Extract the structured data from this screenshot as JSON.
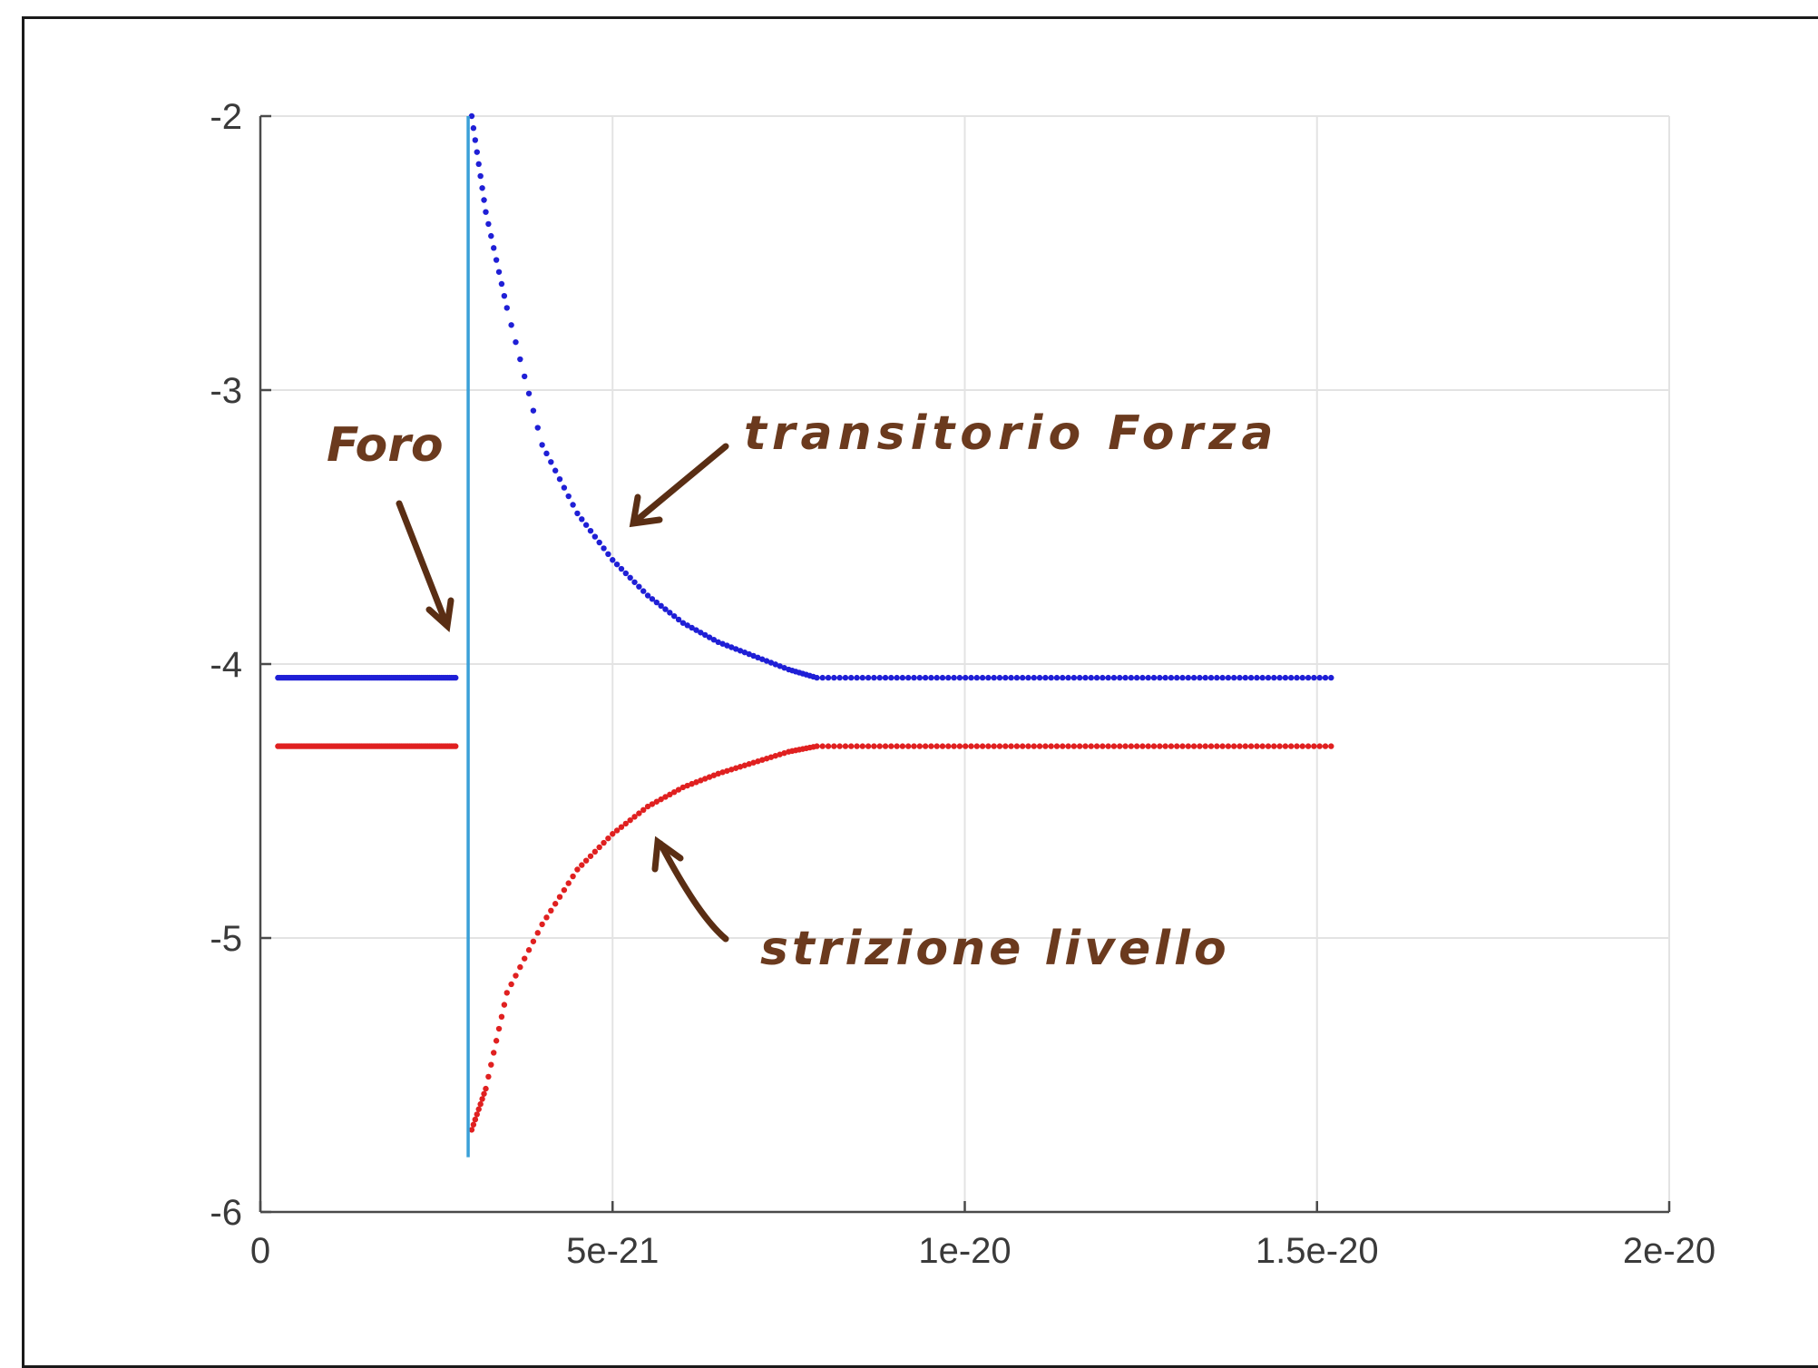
{
  "chart_data": {
    "type": "scatter",
    "xlim": [
      0,
      2e-20
    ],
    "ylim": [
      -6,
      -2
    ],
    "x_ticks": [
      0,
      5e-21,
      1e-20,
      1.5e-20,
      2e-20
    ],
    "x_tick_labels": [
      "0",
      "5e-21",
      "1e-20",
      "1.5e-20",
      "2e-20"
    ],
    "y_ticks": [
      -2,
      -3,
      -4,
      -5,
      -6
    ],
    "y_tick_labels": [
      "-2",
      "-3",
      "-4",
      "-5",
      "-6"
    ],
    "grid": true,
    "series": [
      {
        "color": "#1f1fd6",
        "points": [
          [
            2.5e-22,
            -4.05
          ],
          [
            2.8e-21,
            -4.05
          ],
          [
            3e-21,
            -2.0
          ],
          [
            3.2e-21,
            -2.35
          ],
          [
            3.5e-21,
            -2.7
          ],
          [
            4e-21,
            -3.2
          ],
          [
            4.5e-21,
            -3.45
          ],
          [
            5e-21,
            -3.62
          ],
          [
            5.5e-21,
            -3.75
          ],
          [
            6e-21,
            -3.85
          ],
          [
            6.5e-21,
            -3.92
          ],
          [
            7e-21,
            -3.97
          ],
          [
            7.5e-21,
            -4.02
          ],
          [
            7.9e-21,
            -4.05
          ],
          [
            1.52e-20,
            -4.05
          ]
        ]
      },
      {
        "color": "#e02020",
        "points": [
          [
            2.5e-22,
            -4.3
          ],
          [
            2.8e-21,
            -4.3
          ],
          [
            3e-21,
            -5.7
          ],
          [
            3.2e-21,
            -5.55
          ],
          [
            3.5e-21,
            -5.2
          ],
          [
            4e-21,
            -4.95
          ],
          [
            4.5e-21,
            -4.75
          ],
          [
            5e-21,
            -4.62
          ],
          [
            5.5e-21,
            -4.52
          ],
          [
            6e-21,
            -4.45
          ],
          [
            6.5e-21,
            -4.4
          ],
          [
            7e-21,
            -4.36
          ],
          [
            7.5e-21,
            -4.32
          ],
          [
            7.9e-21,
            -4.3
          ],
          [
            1.52e-20,
            -4.3
          ]
        ]
      },
      {
        "color": "#3aa0d8",
        "points": [
          [
            2.95e-21,
            -4.05
          ],
          [
            2.95e-21,
            -2.0
          ],
          [
            2.95e-21,
            -5.8
          ],
          [
            2.95e-21,
            -4.3
          ]
        ]
      }
    ],
    "annotations": [
      {
        "text": "Foro",
        "color": "#6b3a1e"
      },
      {
        "text": "transitorio Forza",
        "color": "#6b3a1e"
      },
      {
        "text": "strizione livello",
        "color": "#6b3a1e"
      }
    ]
  }
}
